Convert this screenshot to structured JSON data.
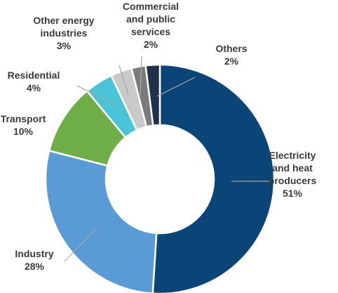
{
  "chart_data": {
    "type": "pie",
    "donut": true,
    "title": "",
    "slices": [
      {
        "label_lines": [
          "Electricity",
          "and heat",
          "producers"
        ],
        "value_label": "51%",
        "value": 51,
        "color": "#0b4477"
      },
      {
        "label_lines": [
          "Industry"
        ],
        "value_label": "28%",
        "value": 28,
        "color": "#5b9bd5"
      },
      {
        "label_lines": [
          "Transport"
        ],
        "value_label": "10%",
        "value": 10,
        "color": "#6fad47"
      },
      {
        "label_lines": [
          "Residential"
        ],
        "value_label": "4%",
        "value": 4,
        "color": "#4cc4d8"
      },
      {
        "label_lines": [
          "Other energy",
          "industries"
        ],
        "value_label": "3%",
        "value": 3,
        "color": "#c9c9c9"
      },
      {
        "label_lines": [
          "Commercial",
          "and public",
          "services"
        ],
        "value_label": "2%",
        "value": 2,
        "color": "#7b7b7b"
      },
      {
        "label_lines": [
          "Others"
        ],
        "value_label": "2%",
        "value": 2,
        "color": "#1f3249"
      }
    ],
    "leader_line_color": "#a6a6a6",
    "label_color": "#3a3a3a"
  }
}
